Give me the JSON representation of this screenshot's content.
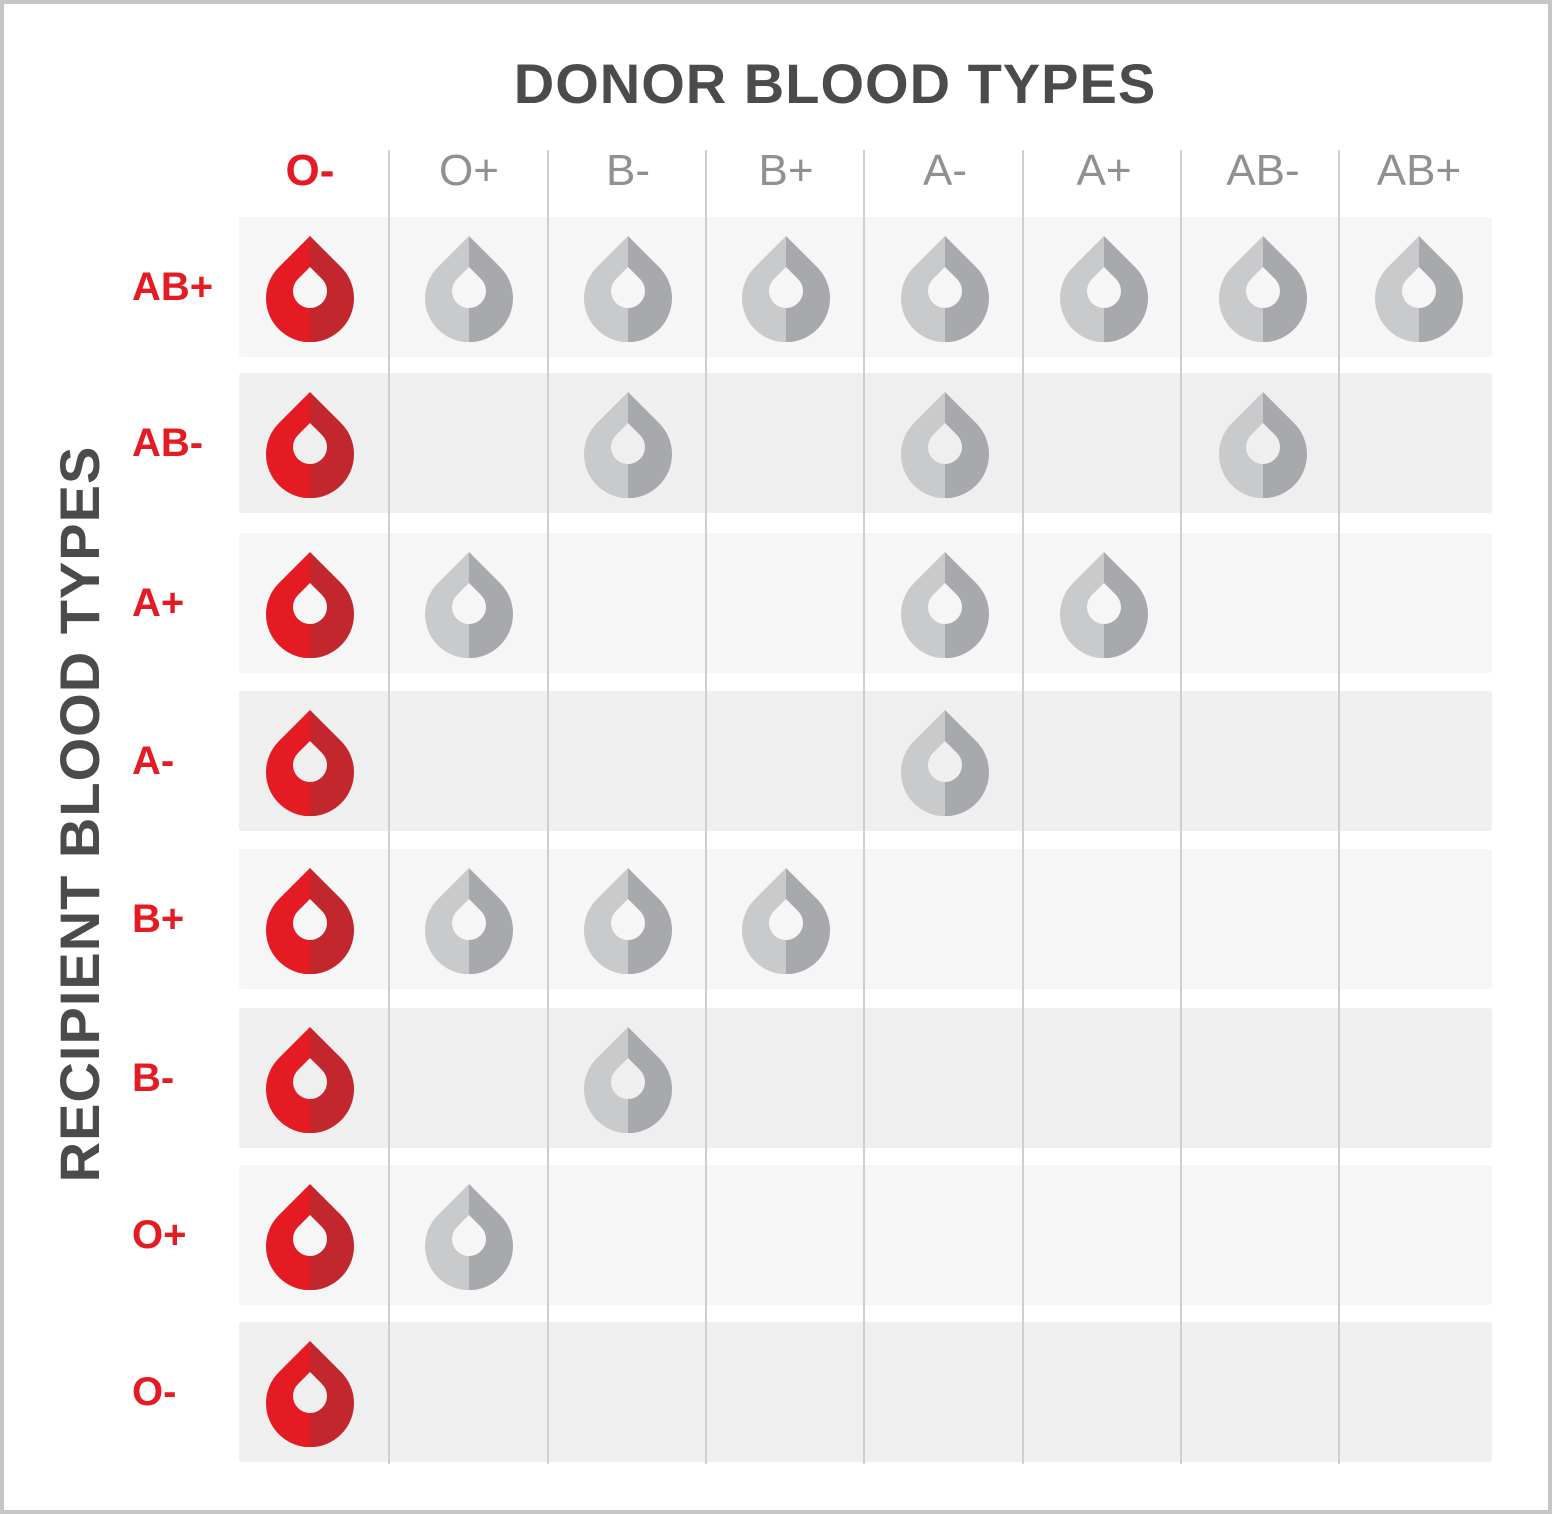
{
  "titles": {
    "donor": "DONOR BLOOD TYPES",
    "recipient": "RECIPIENT BLOOD TYPES"
  },
  "colors": {
    "universal_red": "#e51b24",
    "universal_red_dark": "#c1272d",
    "compatible_gray_light": "#c9cacb",
    "compatible_gray_dark": "#a7a9ac",
    "title_gray": "#4b4b4d"
  },
  "donors": [
    {
      "label": "O-",
      "universal": true
    },
    {
      "label": "O+",
      "universal": false
    },
    {
      "label": "B-",
      "universal": false
    },
    {
      "label": "B+",
      "universal": false
    },
    {
      "label": "A-",
      "universal": false
    },
    {
      "label": "A+",
      "universal": false
    },
    {
      "label": "AB-",
      "universal": false
    },
    {
      "label": "AB+",
      "universal": false
    }
  ],
  "recipients": [
    {
      "label": "AB+",
      "compatible": [
        true,
        true,
        true,
        true,
        true,
        true,
        true,
        true
      ]
    },
    {
      "label": "AB-",
      "compatible": [
        true,
        false,
        true,
        false,
        true,
        false,
        true,
        false
      ]
    },
    {
      "label": "A+",
      "compatible": [
        true,
        true,
        false,
        false,
        true,
        true,
        false,
        false
      ]
    },
    {
      "label": "A-",
      "compatible": [
        true,
        false,
        false,
        false,
        true,
        false,
        false,
        false
      ]
    },
    {
      "label": "B+",
      "compatible": [
        true,
        true,
        true,
        true,
        false,
        false,
        false,
        false
      ]
    },
    {
      "label": "B-",
      "compatible": [
        true,
        false,
        true,
        false,
        false,
        false,
        false,
        false
      ]
    },
    {
      "label": "O+",
      "compatible": [
        true,
        true,
        false,
        false,
        false,
        false,
        false,
        false
      ]
    },
    {
      "label": "O-",
      "compatible": [
        true,
        false,
        false,
        false,
        false,
        false,
        false,
        false
      ]
    }
  ],
  "icon": "blood-drop-icon"
}
